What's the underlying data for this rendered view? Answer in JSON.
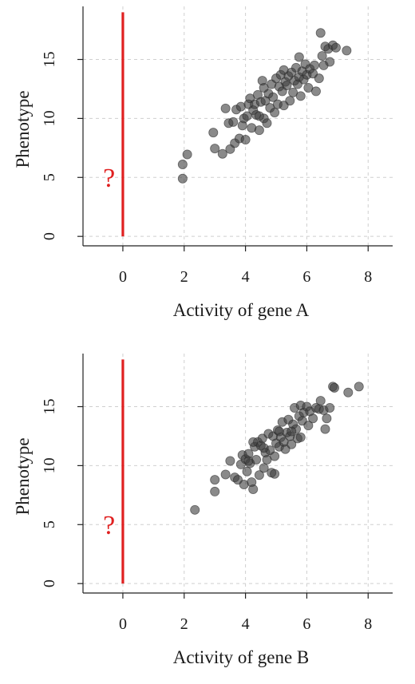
{
  "chart_data": [
    {
      "type": "scatter",
      "xlabel": "Activity of gene A",
      "ylabel": "Phenotype",
      "xlim": [
        -1.3,
        8.8
      ],
      "ylim": [
        -0.8,
        19.5
      ],
      "xticks": [
        "0",
        "2",
        "4",
        "6",
        "8"
      ],
      "yticks": [
        "0",
        "5",
        "10",
        "15"
      ],
      "grid": true,
      "annotation": "?",
      "reference_line": {
        "x": 0,
        "y_from": 0,
        "y_to": 19,
        "color": "#e02020"
      },
      "point_color": "#3c3c3c",
      "points": [
        [
          1.95,
          4.9
        ],
        [
          1.95,
          6.1
        ],
        [
          2.1,
          6.95
        ],
        [
          2.95,
          8.8
        ],
        [
          3.0,
          7.45
        ],
        [
          3.25,
          7.0
        ],
        [
          3.35,
          10.85
        ],
        [
          3.45,
          9.6
        ],
        [
          3.5,
          7.4
        ],
        [
          3.6,
          9.7
        ],
        [
          3.65,
          7.9
        ],
        [
          3.7,
          10.75
        ],
        [
          3.8,
          8.3
        ],
        [
          3.85,
          11.0
        ],
        [
          3.9,
          9.4
        ],
        [
          3.95,
          10.0
        ],
        [
          4.0,
          8.2
        ],
        [
          4.05,
          10.2
        ],
        [
          4.1,
          11.2
        ],
        [
          4.15,
          11.7
        ],
        [
          4.2,
          9.2
        ],
        [
          4.25,
          10.7
        ],
        [
          4.3,
          11.2
        ],
        [
          4.35,
          10.3
        ],
        [
          4.4,
          12.0
        ],
        [
          4.45,
          9.0
        ],
        [
          4.5,
          11.4
        ],
        [
          4.55,
          13.2
        ],
        [
          4.6,
          10.0
        ],
        [
          4.65,
          11.5
        ],
        [
          4.7,
          9.6
        ],
        [
          4.75,
          12.1
        ],
        [
          4.8,
          10.9
        ],
        [
          4.85,
          12.9
        ],
        [
          4.9,
          11.8
        ],
        [
          4.95,
          10.5
        ],
        [
          5.0,
          13.4
        ],
        [
          5.05,
          11.2
        ],
        [
          5.1,
          12.7
        ],
        [
          5.15,
          13.7
        ],
        [
          5.2,
          12.3
        ],
        [
          5.25,
          11.1
        ],
        [
          5.3,
          13.1
        ],
        [
          5.35,
          12.8
        ],
        [
          5.4,
          13.6
        ],
        [
          5.45,
          11.5
        ],
        [
          5.5,
          13.9
        ],
        [
          5.55,
          12.2
        ],
        [
          5.6,
          13.2
        ],
        [
          5.65,
          14.3
        ],
        [
          5.7,
          12.9
        ],
        [
          5.75,
          13.5
        ],
        [
          5.8,
          11.9
        ],
        [
          5.85,
          14.0
        ],
        [
          5.9,
          13.3
        ],
        [
          5.95,
          14.6
        ],
        [
          6.0,
          13.7
        ],
        [
          6.05,
          12.6
        ],
        [
          6.1,
          14.2
        ],
        [
          6.2,
          13.8
        ],
        [
          6.25,
          14.5
        ],
        [
          6.3,
          12.3
        ],
        [
          6.4,
          13.4
        ],
        [
          6.45,
          17.25
        ],
        [
          6.5,
          15.3
        ],
        [
          6.55,
          14.5
        ],
        [
          6.6,
          16.1
        ],
        [
          6.7,
          15.9
        ],
        [
          6.75,
          14.8
        ],
        [
          6.85,
          16.2
        ],
        [
          6.95,
          16.0
        ],
        [
          7.3,
          15.75
        ],
        [
          4.45,
          10.2
        ],
        [
          4.6,
          12.6
        ],
        [
          5.25,
          14.1
        ],
        [
          5.75,
          15.2
        ]
      ]
    },
    {
      "type": "scatter",
      "xlabel": "Activity of gene B",
      "ylabel": "Phenotype",
      "xlim": [
        -1.3,
        8.8
      ],
      "ylim": [
        -0.8,
        19.5
      ],
      "xticks": [
        "0",
        "2",
        "4",
        "6",
        "8"
      ],
      "yticks": [
        "0",
        "5",
        "10",
        "15"
      ],
      "grid": true,
      "annotation": "?",
      "reference_line": {
        "x": 0,
        "y_from": 0,
        "y_to": 19,
        "color": "#e02020"
      },
      "point_color": "#3c3c3c",
      "points": [
        [
          2.35,
          6.25
        ],
        [
          3.0,
          7.8
        ],
        [
          3.0,
          8.8
        ],
        [
          3.35,
          9.25
        ],
        [
          3.5,
          10.4
        ],
        [
          3.65,
          9.0
        ],
        [
          3.75,
          8.8
        ],
        [
          3.85,
          10.1
        ],
        [
          3.9,
          10.9
        ],
        [
          3.95,
          8.4
        ],
        [
          4.0,
          10.55
        ],
        [
          4.05,
          9.5
        ],
        [
          4.1,
          11.0
        ],
        [
          4.15,
          10.2
        ],
        [
          4.2,
          8.6
        ],
        [
          4.25,
          8.0
        ],
        [
          4.3,
          11.6
        ],
        [
          4.35,
          10.5
        ],
        [
          4.4,
          12.0
        ],
        [
          4.45,
          9.2
        ],
        [
          4.5,
          11.7
        ],
        [
          4.55,
          12.3
        ],
        [
          4.6,
          9.8
        ],
        [
          4.65,
          11.1
        ],
        [
          4.7,
          10.5
        ],
        [
          4.75,
          12.7
        ],
        [
          4.8,
          11.3
        ],
        [
          4.85,
          9.4
        ],
        [
          4.9,
          12.5
        ],
        [
          4.95,
          10.8
        ],
        [
          5.0,
          11.9
        ],
        [
          5.05,
          13.0
        ],
        [
          5.1,
          11.6
        ],
        [
          5.15,
          12.4
        ],
        [
          5.2,
          13.7
        ],
        [
          5.25,
          12.0
        ],
        [
          5.3,
          11.4
        ],
        [
          5.35,
          12.8
        ],
        [
          5.4,
          13.9
        ],
        [
          5.45,
          12.5
        ],
        [
          5.5,
          11.8
        ],
        [
          5.55,
          13.5
        ],
        [
          5.6,
          14.9
        ],
        [
          5.65,
          13.1
        ],
        [
          5.7,
          12.3
        ],
        [
          5.75,
          14.2
        ],
        [
          5.8,
          15.1
        ],
        [
          5.85,
          13.8
        ],
        [
          5.9,
          14.5
        ],
        [
          6.0,
          15.0
        ],
        [
          6.05,
          13.4
        ],
        [
          6.1,
          14.6
        ],
        [
          6.2,
          14.0
        ],
        [
          6.3,
          14.9
        ],
        [
          6.4,
          14.8
        ],
        [
          6.45,
          15.5
        ],
        [
          6.55,
          14.7
        ],
        [
          6.6,
          13.1
        ],
        [
          6.65,
          14.0
        ],
        [
          6.75,
          14.9
        ],
        [
          6.85,
          16.7
        ],
        [
          6.9,
          16.6
        ],
        [
          7.35,
          16.2
        ],
        [
          7.7,
          16.7
        ],
        [
          4.1,
          10.4
        ],
        [
          4.6,
          11.5
        ],
        [
          5.1,
          12.9
        ],
        [
          5.5,
          12.9
        ],
        [
          4.25,
          12.0
        ],
        [
          4.95,
          9.3
        ],
        [
          5.8,
          12.4
        ]
      ]
    }
  ]
}
